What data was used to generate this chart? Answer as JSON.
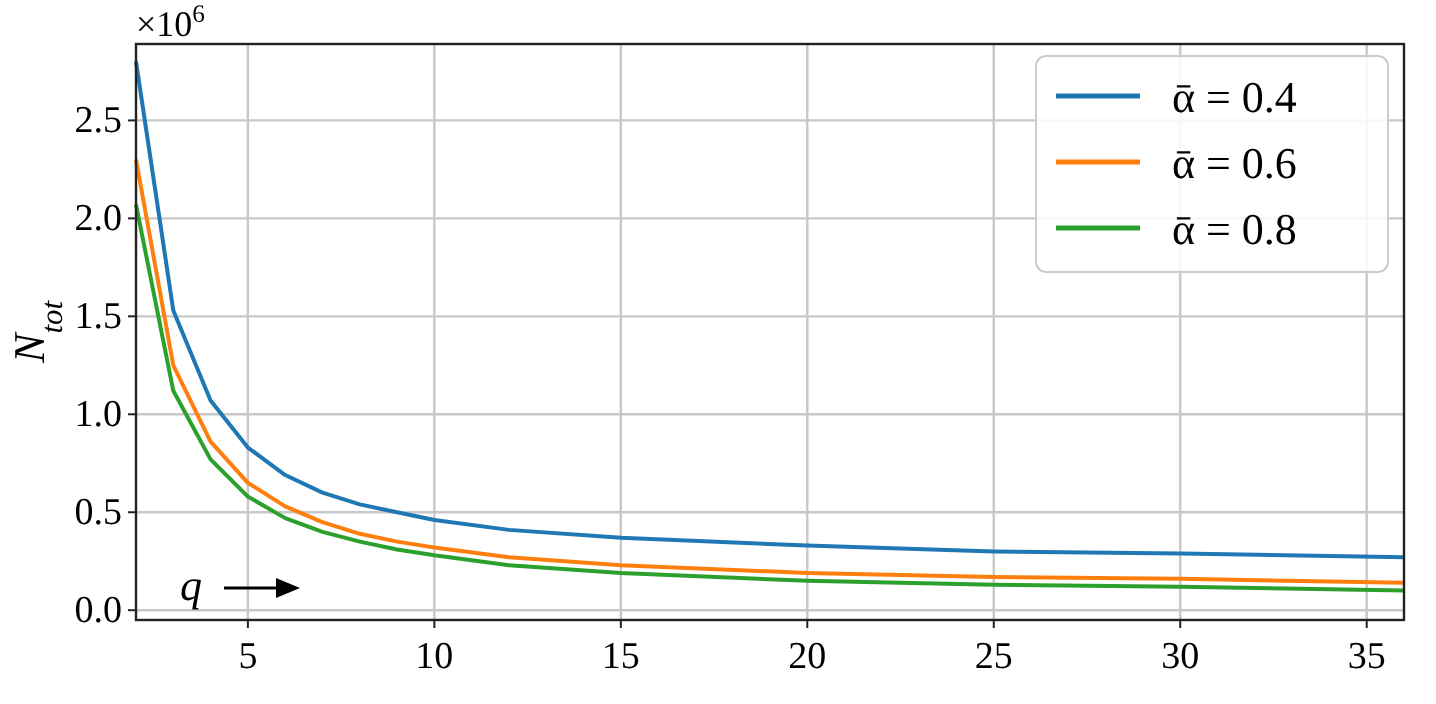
{
  "chart_data": {
    "type": "line",
    "ylabel": "N$_{tot}$",
    "annotations": [
      "×10$^{6}$",
      "q"
    ],
    "x": [
      2,
      3,
      4,
      5,
      6,
      7,
      8,
      9,
      10,
      12,
      15,
      20,
      25,
      30,
      36
    ],
    "series": [
      {
        "name": "ᾱ = 0.4",
        "color": "#1f77b4",
        "values": [
          2.8,
          1.53,
          1.07,
          0.83,
          0.69,
          0.6,
          0.54,
          0.5,
          0.46,
          0.41,
          0.37,
          0.33,
          0.3,
          0.29,
          0.27
        ]
      },
      {
        "name": "ᾱ = 0.6",
        "color": "#ff7f0e",
        "values": [
          2.3,
          1.25,
          0.86,
          0.65,
          0.53,
          0.45,
          0.39,
          0.35,
          0.32,
          0.27,
          0.23,
          0.19,
          0.17,
          0.16,
          0.14
        ]
      },
      {
        "name": "ᾱ = 0.8",
        "color": "#2ca02c",
        "values": [
          2.07,
          1.12,
          0.77,
          0.58,
          0.47,
          0.4,
          0.35,
          0.31,
          0.28,
          0.23,
          0.19,
          0.15,
          0.13,
          0.12,
          0.1
        ]
      }
    ],
    "xlim": [
      2,
      36
    ],
    "xticks": [
      5,
      10,
      15,
      20,
      25,
      30,
      35
    ],
    "ylim": [
      -0.05,
      2.89
    ],
    "yticks": [
      {
        "value": 0,
        "label": "0.0"
      },
      0.5,
      {
        "value": 1,
        "label": "1.0"
      },
      1.5,
      {
        "value": 2,
        "label": "2.0"
      },
      2.5
    ],
    "grid": true,
    "legend": "top right",
    "line_style": "solid"
  }
}
